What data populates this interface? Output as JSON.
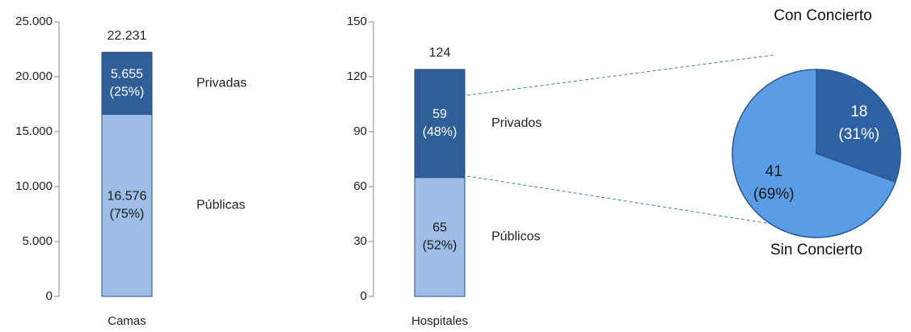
{
  "chart_data": [
    {
      "type": "bar",
      "stacked": true,
      "categories": [
        "Camas"
      ],
      "series": [
        {
          "name": "Públicas",
          "color": "#9dbde6",
          "values": [
            16576
          ],
          "value_labels": [
            "16.576"
          ],
          "share_labels": [
            "(75%)"
          ]
        },
        {
          "name": "Privadas",
          "color": "#305e96",
          "values": [
            5655
          ],
          "value_labels": [
            "5.655"
          ],
          "share_labels": [
            "(25%)"
          ]
        }
      ],
      "total": 22231,
      "total_label": "22.231",
      "ylim": [
        0,
        25000
      ],
      "yticks": [
        0,
        {
          "value": 5000,
          "label": "5.000"
        },
        {
          "value": 10000,
          "label": "10.000"
        },
        {
          "value": 15000,
          "label": "15.000"
        },
        {
          "value": 20000,
          "label": "20.000"
        },
        {
          "value": 25000,
          "label": "25.000"
        }
      ]
    },
    {
      "type": "bar",
      "stacked": true,
      "categories": [
        "Hospitales"
      ],
      "series": [
        {
          "name": "Públicos",
          "color": "#9dbde6",
          "values": [
            65
          ],
          "share_labels": [
            "(52%)"
          ]
        },
        {
          "name": "Privados",
          "color": "#305e96",
          "values": [
            59
          ],
          "share_labels": [
            "(48%)"
          ]
        }
      ],
      "total": 124,
      "ylim": [
        0,
        150
      ],
      "yticks": [
        0,
        30,
        60,
        90,
        120,
        150
      ]
    },
    {
      "type": "pie",
      "categories": [
        "Con Concierto",
        "Sin Concierto"
      ],
      "values": [
        18,
        41
      ],
      "share_labels": [
        "(31%)",
        "(69%)"
      ],
      "colors": [
        "#2f62a3",
        "#5b9ce6"
      ]
    }
  ]
}
